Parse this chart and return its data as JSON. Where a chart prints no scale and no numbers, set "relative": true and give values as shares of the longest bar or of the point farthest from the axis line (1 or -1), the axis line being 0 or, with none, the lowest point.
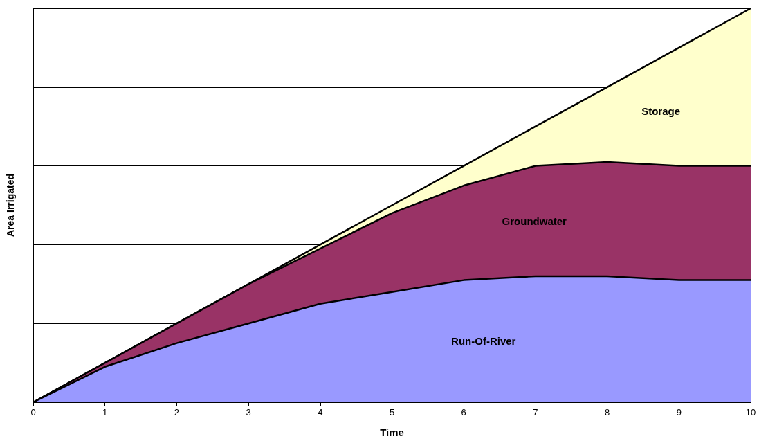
{
  "chart_data": {
    "type": "area",
    "stacked": true,
    "relative": true,
    "xlabel": "Time",
    "ylabel": "Area Irrigated",
    "x": [
      0,
      1,
      2,
      3,
      4,
      5,
      6,
      7,
      8,
      9,
      10
    ],
    "xlim": [
      0,
      10
    ],
    "xticks": [
      0,
      1,
      2,
      3,
      4,
      5,
      6,
      7,
      8,
      9,
      10
    ],
    "grid": "y",
    "legend": false,
    "marker": "none",
    "series": [
      {
        "name": "Run-Of-River",
        "color": "#9999ff",
        "values": [
          0,
          0.09,
          0.15,
          0.2,
          0.25,
          0.28,
          0.31,
          0.32,
          0.32,
          0.31,
          0.31
        ]
      },
      {
        "name": "Groundwater",
        "color": "#993366",
        "values": [
          0,
          0.01,
          0.05,
          0.1,
          0.14,
          0.2,
          0.24,
          0.28,
          0.29,
          0.29,
          0.29
        ]
      },
      {
        "name": "Storage",
        "color": "#ffffcc",
        "values": [
          0,
          0,
          0,
          0,
          0.01,
          0.02,
          0.05,
          0.1,
          0.19,
          0.3,
          0.4
        ]
      }
    ]
  }
}
